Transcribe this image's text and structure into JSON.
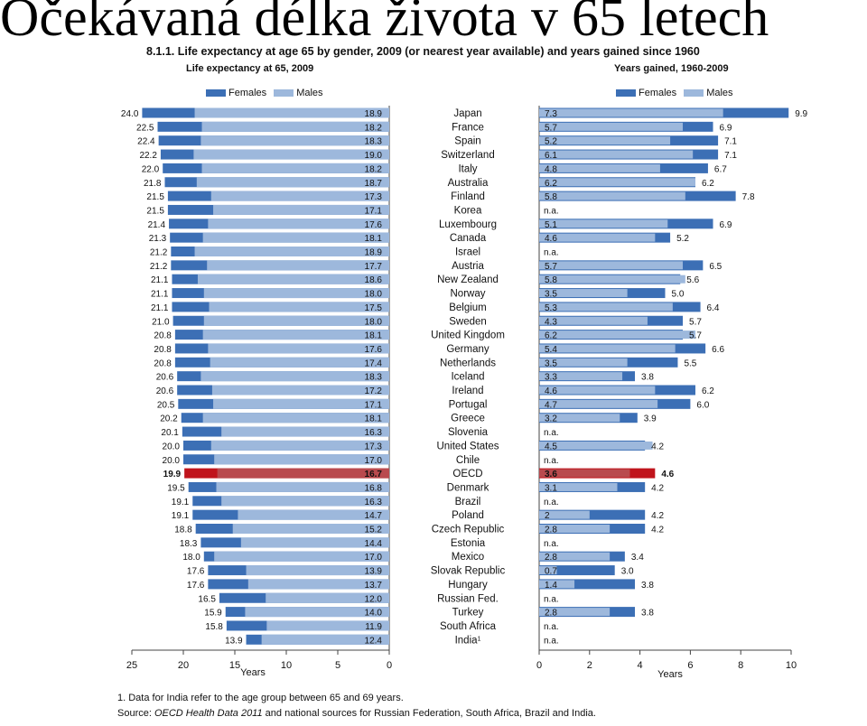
{
  "slide_title": "Očekávaná délka života v 65 letech",
  "figure_title": "8.1.1. Life expectancy at age 65 by gender, 2009 (or nearest year available) and years gained since 1960",
  "left_subtitle": "Life expectancy at 65, 2009",
  "right_subtitle": "Years gained, 1960-2009",
  "legend": {
    "females": "Females",
    "males": "Males"
  },
  "colors": {
    "females": "#3c6fb5",
    "males": "#9db8dc",
    "highlight_females": "#c0141c",
    "highlight_males": "#b94a4e"
  },
  "footnote": "1. Data for India refer to the age group between 65 and 69 years.",
  "source": {
    "prefix": "Source: ",
    "name": "OECD Health Data 2011",
    "rest": " and national sources for Russian Federation, South Africa, Brazil and India."
  },
  "chart_data": [
    {
      "type": "bar",
      "title": "Life expectancy at 65, 2009",
      "xlabel": "Years",
      "xlim": [
        0,
        25
      ],
      "ticks": [
        25,
        20,
        15,
        10,
        5,
        0
      ],
      "highlight": "OECD",
      "categories": [
        "Japan",
        "France",
        "Spain",
        "Switzerland",
        "Italy",
        "Australia",
        "Finland",
        "Korea",
        "Luxembourg",
        "Canada",
        "Israel",
        "Austria",
        "New Zealand",
        "Norway",
        "Belgium",
        "Sweden",
        "United Kingdom",
        "Germany",
        "Netherlands",
        "Iceland",
        "Ireland",
        "Portugal",
        "Greece",
        "Slovenia",
        "United States",
        "Chile",
        "OECD",
        "Denmark",
        "Brazil",
        "Poland",
        "Czech Republic",
        "Estonia",
        "Mexico",
        "Slovak Republic",
        "Hungary",
        "Russian Fed.",
        "Turkey",
        "South Africa",
        "India"
      ],
      "superscripts": {
        "India": "1"
      },
      "series": [
        {
          "name": "Females",
          "labels": [
            "24.0",
            "22.5",
            "22.4",
            "22.2",
            "22.0",
            "21.8",
            "21.5",
            "21.5",
            "21.4",
            "21.3",
            "21.2",
            "21.2",
            "21.1",
            "21.1",
            "21.1",
            "21.0",
            "20.8",
            "20.8",
            "20.8",
            "20.6",
            "20.6",
            "20.5",
            "20.2",
            "20.1",
            "20.0",
            "20.0",
            "19.9",
            "19.5",
            "19.1",
            "19.1",
            "18.8",
            "18.3",
            "18.0",
            "17.6",
            "17.6",
            "16.5",
            "15.9",
            "15.8",
            "13.9"
          ]
        },
        {
          "name": "Males",
          "labels": [
            "18.9",
            "18.2",
            "18.3",
            "19.0",
            "18.2",
            "18.7",
            "17.3",
            "17.1",
            "17.6",
            "18.1",
            "18.9",
            "17.7",
            "18.6",
            "18.0",
            "17.5",
            "18.0",
            "18.1",
            "17.6",
            "17.4",
            "18.3",
            "17.2",
            "17.1",
            "18.1",
            "16.3",
            "17.3",
            "17.0",
            "16.7",
            "16.8",
            "16.3",
            "14.7",
            "15.2",
            "14.4",
            "17.0",
            "13.9",
            "13.7",
            "12.0",
            "14.0",
            "11.9",
            "12.4"
          ]
        }
      ]
    },
    {
      "type": "bar",
      "title": "Years gained, 1960-2009",
      "xlabel": "Years",
      "xlim": [
        0,
        10
      ],
      "ticks": [
        0,
        2,
        4,
        6,
        8,
        10
      ],
      "highlight": "OECD",
      "categories": [
        "Japan",
        "France",
        "Spain",
        "Switzerland",
        "Italy",
        "Australia",
        "Finland",
        "Korea",
        "Luxembourg",
        "Canada",
        "Israel",
        "Austria",
        "New Zealand",
        "Norway",
        "Belgium",
        "Sweden",
        "United Kingdom",
        "Germany",
        "Netherlands",
        "Iceland",
        "Ireland",
        "Portugal",
        "Greece",
        "Slovenia",
        "United States",
        "Chile",
        "OECD",
        "Denmark",
        "Brazil",
        "Poland",
        "Czech Republic",
        "Estonia",
        "Mexico",
        "Slovak Republic",
        "Hungary",
        "Russian Fed.",
        "Turkey",
        "South Africa",
        "India"
      ],
      "na_label": "n.a.",
      "series": [
        {
          "name": "Females",
          "labels": [
            "9.9",
            "6.9",
            "7.1",
            "7.1",
            "6.7",
            "6.2",
            "7.8",
            "",
            "6.9",
            "5.2",
            "",
            "6.5",
            "5.6",
            "5.0",
            "6.4",
            "5.7",
            "5.7",
            "6.6",
            "5.5",
            "3.8",
            "6.2",
            "6.0",
            "3.9",
            "",
            "4.2",
            "",
            "4.6",
            "4.2",
            "",
            "4.2",
            "4.2",
            "",
            "3.4",
            "3.0",
            "3.8",
            "",
            "3.8",
            "",
            ""
          ]
        },
        {
          "name": "Males",
          "labels": [
            "7.3",
            "5.7",
            "5.2",
            "6.1",
            "4.8",
            "6.2",
            "5.8",
            "",
            "5.1",
            "4.6",
            "",
            "5.7",
            "5.8",
            "3.5",
            "5.3",
            "4.3",
            "6.2",
            "5.4",
            "3.5",
            "3.3",
            "4.6",
            "4.7",
            "3.2",
            "",
            "4.5",
            "",
            "3.6",
            "3.1",
            "",
            "2",
            "2.8",
            "",
            "2.8",
            "0.7",
            "1.4",
            "",
            "2.8",
            "",
            ""
          ]
        }
      ]
    }
  ]
}
